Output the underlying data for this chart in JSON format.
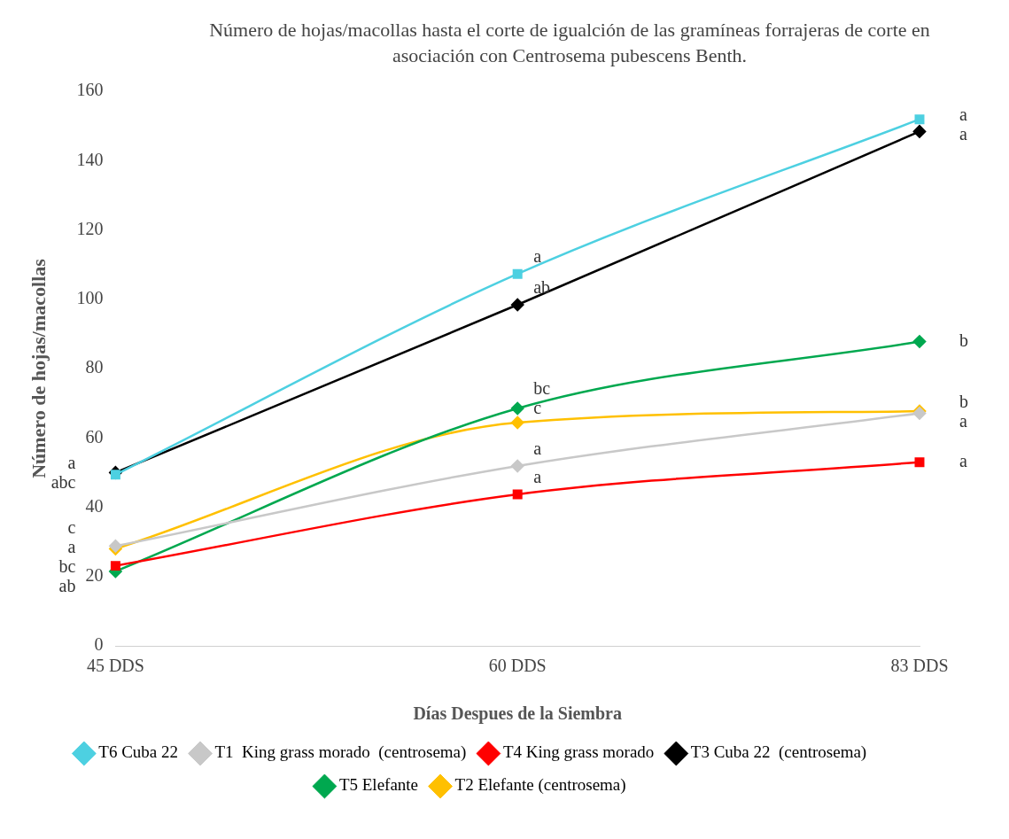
{
  "chart_data": {
    "type": "line",
    "title": "Número de hojas/macollas hasta el corte de igualción de las gramíneas forrajeras de corte en asociación con Centrosema pubescens Benth.",
    "xlabel": "Días Despues de la Siembra",
    "ylabel": "Número de hojas/macollas",
    "categories": [
      "45 DDS",
      "60 DDS",
      "83 DDS"
    ],
    "ylim": [
      0,
      160
    ],
    "yticks": [
      0,
      20,
      40,
      60,
      80,
      100,
      120,
      140,
      160
    ],
    "grid": false,
    "legend": "bottom",
    "series": [
      {
        "name": "T6 Cuba 22",
        "color": "#4dd0e1",
        "marker": "square",
        "values": [
          49.4,
          107.3,
          151.9
        ]
      },
      {
        "name": "T1  King grass morado  (centrosema)",
        "color": "#c8c8c8",
        "marker": "diamond",
        "values": [
          28.8,
          51.9,
          67.1
        ]
      },
      {
        "name": "T4 King grass morado",
        "color": "#ff0000",
        "marker": "square",
        "values": [
          23.1,
          43.7,
          53
        ]
      },
      {
        "name": "T3 Cuba 22  (centrosema)",
        "color": "#000000",
        "marker": "diamond",
        "values": [
          50,
          98.4,
          148.4
        ]
      },
      {
        "name": "T5 Elefante",
        "color": "#00a84f",
        "marker": "diamond",
        "values": [
          21.5,
          68.5,
          87.8
        ]
      },
      {
        "name": "T2 Elefante (centrosema)",
        "color": "#ffc000",
        "marker": "diamond",
        "values": [
          28,
          64.4,
          67.7
        ]
      }
    ],
    "annotations": [
      {
        "text": "a",
        "x": "45 DDS",
        "y": 49.4
      },
      {
        "text": "abc",
        "x": "45 DDS",
        "y": 50
      },
      {
        "text": "c",
        "x": "45 DDS",
        "y": 28
      },
      {
        "text": "a",
        "x": "45 DDS",
        "y": 28.8
      },
      {
        "text": "bc",
        "x": "45 DDS",
        "y": 21.5
      },
      {
        "text": "ab",
        "x": "45 DDS",
        "y": 23.1
      },
      {
        "text": "a",
        "x": "60 DDS",
        "y": 107.3
      },
      {
        "text": "ab",
        "x": "60 DDS",
        "y": 98.4
      },
      {
        "text": "bc",
        "x": "60 DDS",
        "y": 68.5
      },
      {
        "text": "c",
        "x": "60 DDS",
        "y": 64.4
      },
      {
        "text": "a",
        "x": "60 DDS",
        "y": 51.9
      },
      {
        "text": "a",
        "x": "60 DDS",
        "y": 43.7
      },
      {
        "text": "a",
        "x": "83 DDS",
        "y": 151.9
      },
      {
        "text": "a",
        "x": "83 DDS",
        "y": 148.4
      },
      {
        "text": "b",
        "x": "83 DDS",
        "y": 87.8
      },
      {
        "text": "b",
        "x": "83 DDS",
        "y": 67.7
      },
      {
        "text": "a",
        "x": "83 DDS",
        "y": 67.1
      },
      {
        "text": "a",
        "x": "83 DDS",
        "y": 53
      }
    ]
  }
}
